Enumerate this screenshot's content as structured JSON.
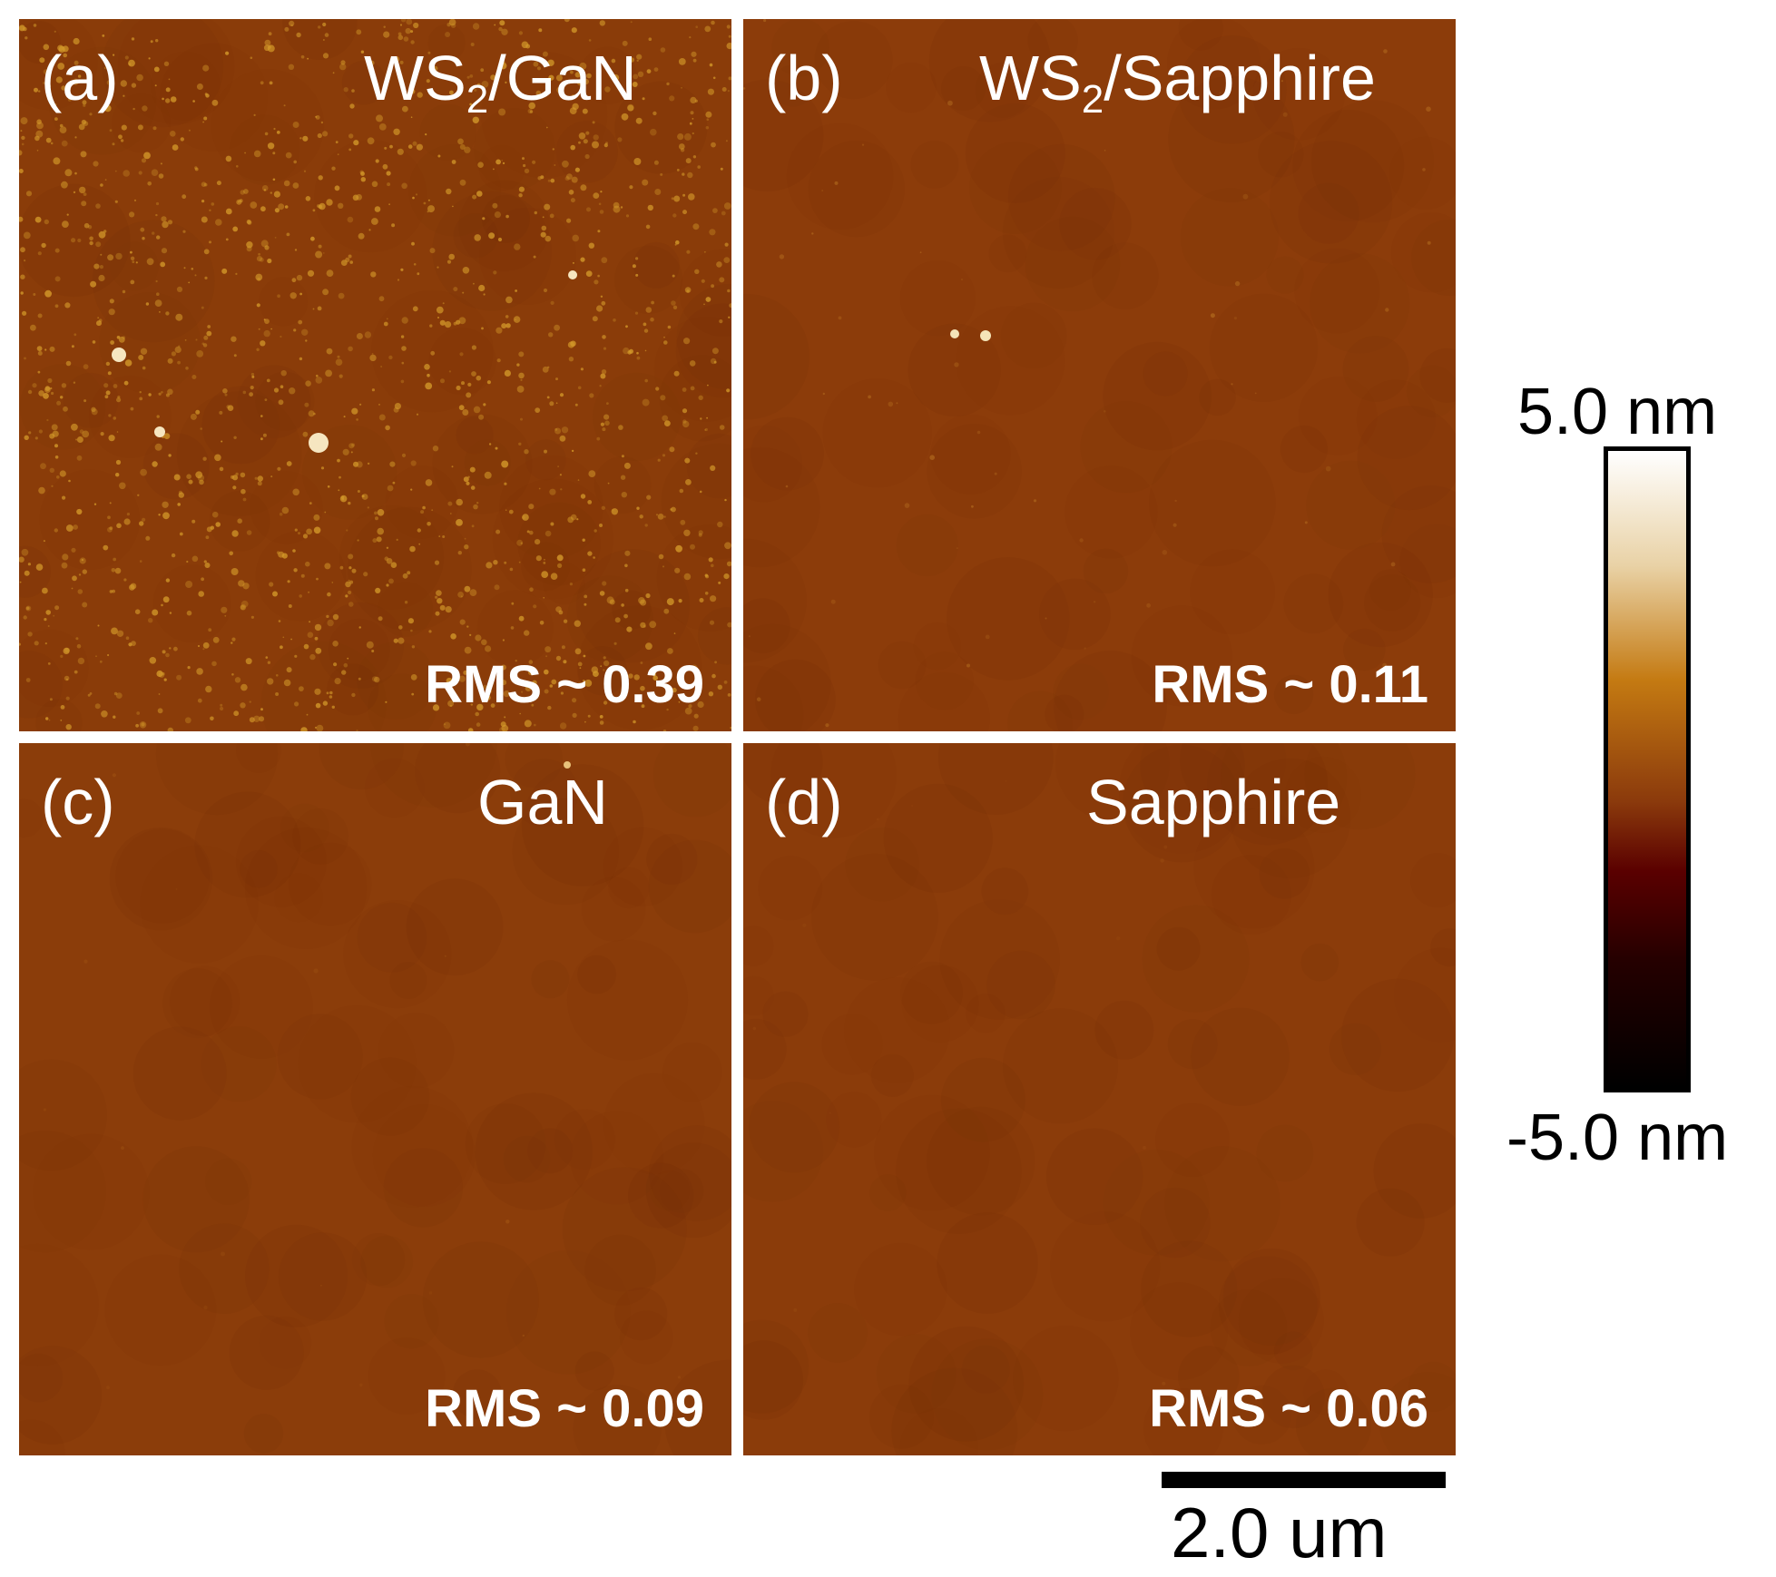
{
  "panels": [
    {
      "id": "a",
      "letter": "(a)",
      "title_main": "WS",
      "title_sub": "2",
      "title_rest": "/GaN",
      "rms": "RMS ~ 0.39",
      "base_color": "#8a3c09",
      "grain_color": "#d49a2a",
      "bright_color": "#f6e6c0"
    },
    {
      "id": "b",
      "letter": "(b)",
      "title_main": "WS",
      "title_sub": "2",
      "title_rest": "/Sapphire",
      "rms": "RMS ~ 0.11",
      "base_color": "#8c3c0a",
      "grain_color": "#c9862a",
      "bright_color": "#f4e4b8"
    },
    {
      "id": "c",
      "letter": "(c)",
      "title_main": "GaN",
      "title_sub": "",
      "title_rest": "",
      "rms": "RMS ~ 0.09",
      "base_color": "#8b3d0a",
      "grain_color": "#b66a1c",
      "bright_color": "#e8c27a"
    },
    {
      "id": "d",
      "letter": "(d)",
      "title_main": "Sapphire",
      "title_sub": "",
      "title_rest": "",
      "rms": "RMS ~ 0.06",
      "base_color": "#8b3c0a",
      "grain_color": "#a85c18",
      "bright_color": "#d8a860"
    }
  ],
  "colorbar": {
    "max_label": "5.0 nm",
    "min_label": "-5.0 nm"
  },
  "scale_bar": {
    "label": "2.0 um"
  }
}
